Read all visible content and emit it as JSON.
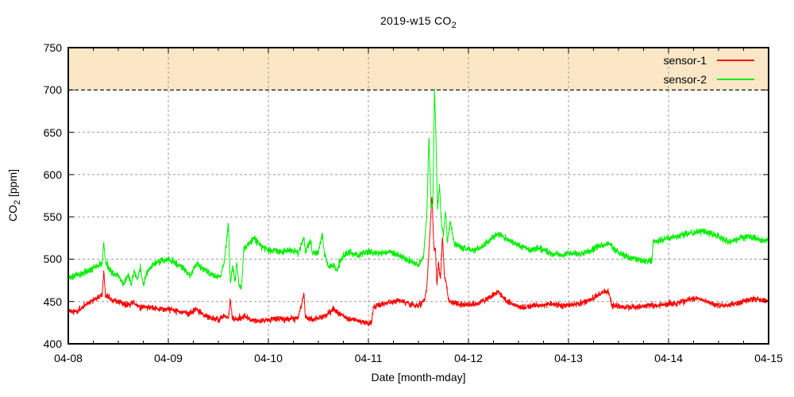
{
  "chart_data": {
    "type": "line",
    "title": {
      "text": "2019-w15 CO",
      "sub": "2"
    },
    "xlabel": "Date [month-mday]",
    "ylabel": {
      "prefix": "CO",
      "sub": "2",
      "suffix": " [ppm]"
    },
    "x_range": [
      0,
      7
    ],
    "ylim": [
      400,
      750
    ],
    "y_ticks": [
      400,
      450,
      500,
      550,
      600,
      650,
      700,
      750
    ],
    "x_ticks": [
      {
        "day": 0,
        "label": "04-08"
      },
      {
        "day": 1,
        "label": "04-09"
      },
      {
        "day": 2,
        "label": "04-10"
      },
      {
        "day": 3,
        "label": "04-11"
      },
      {
        "day": 4,
        "label": "04-12"
      },
      {
        "day": 5,
        "label": "04-13"
      },
      {
        "day": 6,
        "label": "04-14"
      },
      {
        "day": 7,
        "label": "04-15"
      }
    ],
    "minor_x_step": 0.25,
    "grid": {
      "color": "#9a9a9a",
      "style": "dashed",
      "on": true
    },
    "threshold_line": {
      "value": 700,
      "color": "#000000",
      "style": "dashed"
    },
    "shaded_band": {
      "from": 700,
      "to": 750,
      "color": "#fbe7c6"
    },
    "legend": {
      "position": "top-right"
    },
    "sample_step_days": 0.002,
    "series": [
      {
        "name": "sensor-1",
        "color": "#ff0000",
        "noise_amp": 4.5,
        "seed": 1234567,
        "keypoints": [
          [
            0.0,
            439
          ],
          [
            0.08,
            437
          ],
          [
            0.15,
            444
          ],
          [
            0.22,
            450
          ],
          [
            0.3,
            455
          ],
          [
            0.34,
            457
          ],
          [
            0.355,
            487
          ],
          [
            0.37,
            458
          ],
          [
            0.42,
            453
          ],
          [
            0.5,
            450
          ],
          [
            0.58,
            446
          ],
          [
            0.65,
            449
          ],
          [
            0.72,
            443
          ],
          [
            0.8,
            444
          ],
          [
            0.9,
            441
          ],
          [
            1.0,
            441
          ],
          [
            1.08,
            438
          ],
          [
            1.15,
            437
          ],
          [
            1.22,
            436
          ],
          [
            1.28,
            441
          ],
          [
            1.35,
            434
          ],
          [
            1.42,
            431
          ],
          [
            1.5,
            428
          ],
          [
            1.55,
            433
          ],
          [
            1.6,
            430
          ],
          [
            1.62,
            452
          ],
          [
            1.64,
            431
          ],
          [
            1.7,
            429
          ],
          [
            1.76,
            433
          ],
          [
            1.82,
            429
          ],
          [
            1.9,
            427
          ],
          [
            2.0,
            428
          ],
          [
            2.1,
            430
          ],
          [
            2.2,
            429
          ],
          [
            2.3,
            431
          ],
          [
            2.355,
            460
          ],
          [
            2.37,
            431
          ],
          [
            2.45,
            429
          ],
          [
            2.55,
            432
          ],
          [
            2.65,
            441
          ],
          [
            2.7,
            437
          ],
          [
            2.78,
            430
          ],
          [
            2.88,
            428
          ],
          [
            2.96,
            425
          ],
          [
            3.03,
            424
          ],
          [
            3.05,
            444
          ],
          [
            3.12,
            446
          ],
          [
            3.2,
            449
          ],
          [
            3.3,
            451
          ],
          [
            3.4,
            447
          ],
          [
            3.5,
            445
          ],
          [
            3.56,
            452
          ],
          [
            3.585,
            468
          ],
          [
            3.61,
            520
          ],
          [
            3.635,
            578
          ],
          [
            3.655,
            512
          ],
          [
            3.67,
            512
          ],
          [
            3.685,
            468
          ],
          [
            3.7,
            498
          ],
          [
            3.72,
            476
          ],
          [
            3.74,
            528
          ],
          [
            3.76,
            480
          ],
          [
            3.78,
            470
          ],
          [
            3.8,
            452
          ],
          [
            3.85,
            448
          ],
          [
            3.95,
            446
          ],
          [
            4.05,
            447
          ],
          [
            4.15,
            450
          ],
          [
            4.25,
            458
          ],
          [
            4.3,
            462
          ],
          [
            4.35,
            453
          ],
          [
            4.45,
            446
          ],
          [
            4.55,
            443
          ],
          [
            4.65,
            445
          ],
          [
            4.75,
            446
          ],
          [
            4.85,
            447
          ],
          [
            4.95,
            445
          ],
          [
            5.05,
            446
          ],
          [
            5.15,
            449
          ],
          [
            5.25,
            454
          ],
          [
            5.35,
            461
          ],
          [
            5.4,
            463
          ],
          [
            5.43,
            446
          ],
          [
            5.52,
            444
          ],
          [
            5.62,
            443
          ],
          [
            5.72,
            444
          ],
          [
            5.82,
            445
          ],
          [
            5.92,
            446
          ],
          [
            6.02,
            447
          ],
          [
            6.12,
            449
          ],
          [
            6.25,
            454
          ],
          [
            6.35,
            452
          ],
          [
            6.45,
            446
          ],
          [
            6.55,
            445
          ],
          [
            6.65,
            447
          ],
          [
            6.75,
            450
          ],
          [
            6.85,
            453
          ],
          [
            6.92,
            452
          ],
          [
            7.0,
            450
          ]
        ]
      },
      {
        "name": "sensor-2",
        "color": "#00ee00",
        "noise_amp": 5.0,
        "seed": 987654,
        "keypoints": [
          [
            0.0,
            478
          ],
          [
            0.08,
            481
          ],
          [
            0.16,
            484
          ],
          [
            0.24,
            488
          ],
          [
            0.3,
            492
          ],
          [
            0.34,
            496
          ],
          [
            0.355,
            520
          ],
          [
            0.37,
            497
          ],
          [
            0.43,
            484
          ],
          [
            0.5,
            480
          ],
          [
            0.55,
            470
          ],
          [
            0.6,
            480
          ],
          [
            0.63,
            471
          ],
          [
            0.66,
            486
          ],
          [
            0.69,
            477
          ],
          [
            0.72,
            490
          ],
          [
            0.75,
            469
          ],
          [
            0.78,
            482
          ],
          [
            0.83,
            492
          ],
          [
            0.9,
            497
          ],
          [
            1.0,
            500
          ],
          [
            1.06,
            496
          ],
          [
            1.12,
            492
          ],
          [
            1.18,
            486
          ],
          [
            1.22,
            481
          ],
          [
            1.28,
            494
          ],
          [
            1.35,
            488
          ],
          [
            1.45,
            481
          ],
          [
            1.52,
            479
          ],
          [
            1.56,
            498
          ],
          [
            1.58,
            519
          ],
          [
            1.6,
            543
          ],
          [
            1.62,
            473
          ],
          [
            1.645,
            491
          ],
          [
            1.665,
            473
          ],
          [
            1.685,
            498
          ],
          [
            1.705,
            469
          ],
          [
            1.73,
            466
          ],
          [
            1.755,
            512
          ],
          [
            1.8,
            518
          ],
          [
            1.86,
            525
          ],
          [
            1.92,
            516
          ],
          [
            2.0,
            511
          ],
          [
            2.1,
            508
          ],
          [
            2.2,
            511
          ],
          [
            2.3,
            508
          ],
          [
            2.355,
            526
          ],
          [
            2.37,
            508
          ],
          [
            2.42,
            523
          ],
          [
            2.44,
            507
          ],
          [
            2.5,
            509
          ],
          [
            2.54,
            530
          ],
          [
            2.56,
            507
          ],
          [
            2.6,
            490
          ],
          [
            2.65,
            494
          ],
          [
            2.69,
            487
          ],
          [
            2.73,
            502
          ],
          [
            2.8,
            508
          ],
          [
            2.9,
            505
          ],
          [
            3.0,
            509
          ],
          [
            3.1,
            507
          ],
          [
            3.2,
            509
          ],
          [
            3.3,
            505
          ],
          [
            3.4,
            499
          ],
          [
            3.5,
            493
          ],
          [
            3.55,
            502
          ],
          [
            3.585,
            555
          ],
          [
            3.605,
            648
          ],
          [
            3.625,
            560
          ],
          [
            3.645,
            565
          ],
          [
            3.66,
            703
          ],
          [
            3.675,
            645
          ],
          [
            3.69,
            560
          ],
          [
            3.71,
            588
          ],
          [
            3.73,
            542
          ],
          [
            3.75,
            528
          ],
          [
            3.77,
            558
          ],
          [
            3.79,
            522
          ],
          [
            3.82,
            544
          ],
          [
            3.86,
            517
          ],
          [
            3.95,
            513
          ],
          [
            4.05,
            511
          ],
          [
            4.15,
            516
          ],
          [
            4.25,
            527
          ],
          [
            4.32,
            529
          ],
          [
            4.42,
            521
          ],
          [
            4.52,
            516
          ],
          [
            4.62,
            511
          ],
          [
            4.72,
            513
          ],
          [
            4.82,
            507
          ],
          [
            4.92,
            505
          ],
          [
            5.02,
            507
          ],
          [
            5.12,
            506
          ],
          [
            5.22,
            510
          ],
          [
            5.32,
            516
          ],
          [
            5.4,
            519
          ],
          [
            5.5,
            507
          ],
          [
            5.6,
            503
          ],
          [
            5.7,
            499
          ],
          [
            5.8,
            497
          ],
          [
            5.835,
            498
          ],
          [
            5.845,
            520
          ],
          [
            5.95,
            523
          ],
          [
            6.05,
            526
          ],
          [
            6.2,
            530
          ],
          [
            6.35,
            533
          ],
          [
            6.5,
            527
          ],
          [
            6.6,
            521
          ],
          [
            6.7,
            524
          ],
          [
            6.8,
            527
          ],
          [
            6.9,
            523
          ],
          [
            7.0,
            522
          ]
        ]
      }
    ]
  }
}
